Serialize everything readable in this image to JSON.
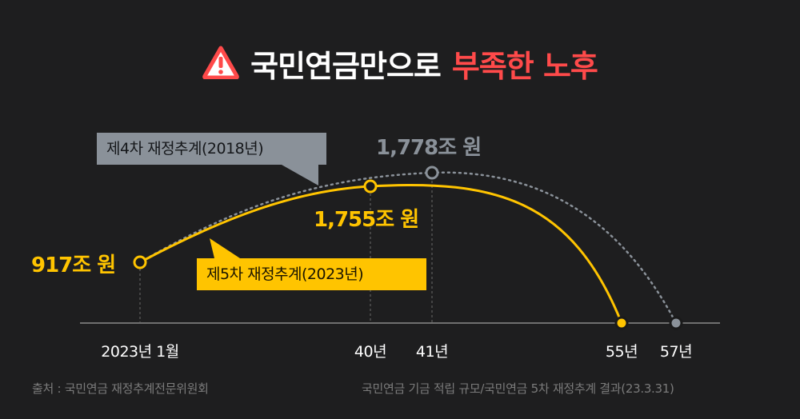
{
  "title": {
    "part1": "국민연금만으로",
    "part2": "부족한 노후",
    "icon": "warning-icon"
  },
  "colors": {
    "background": "#1e1e1f",
    "accent_red": "#ff4a4a",
    "series_2023": "#ffc400",
    "series_2018": "#8a9199",
    "point_fill": "#1a1a1a"
  },
  "chart_data": {
    "type": "line",
    "x_axis_labels": [
      "2023년 1월",
      "40년",
      "41년",
      "55년",
      "57년"
    ],
    "series": [
      {
        "name": "제5차 재정추계(2023년)",
        "style": "solid",
        "points": [
          {
            "x": "2023년 1월",
            "y": 917,
            "label": "917조 원"
          },
          {
            "x": "40년",
            "y": 1755,
            "label": "1,755조 원"
          },
          {
            "x": "55년",
            "y": 0
          }
        ]
      },
      {
        "name": "제4차 재정추계(2018년)",
        "style": "dotted",
        "points": [
          {
            "x": "41년",
            "y": 1778,
            "label": "1,778조 원"
          },
          {
            "x": "57년",
            "y": 0
          }
        ]
      }
    ],
    "unit": "조 원"
  },
  "source": {
    "left": "출처 : 국민연금 재정추계전문위원회",
    "right": "국민연금 기금 적립 규모/국민연금 5차 재정추계 결과(23.3.31)"
  }
}
